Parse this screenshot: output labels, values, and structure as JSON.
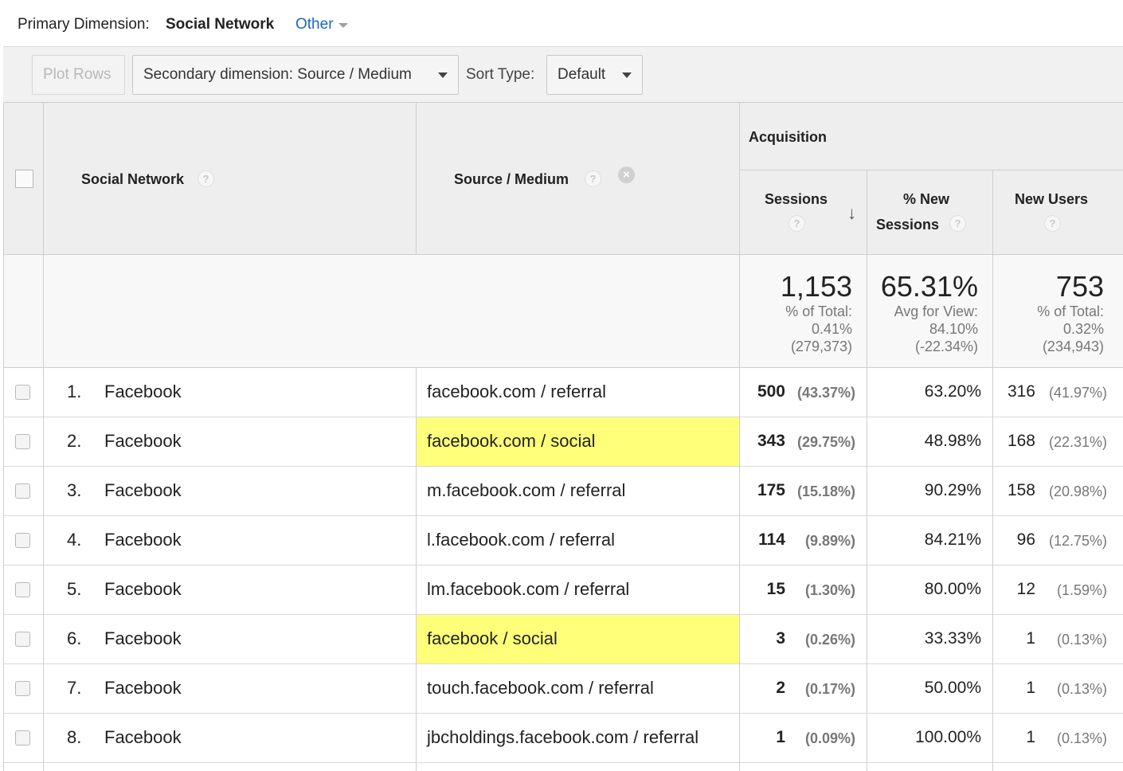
{
  "dimension_bar": {
    "label": "Primary Dimension:",
    "current": "Social Network",
    "other": "Other"
  },
  "toolbar": {
    "plot_rows": "Plot Rows",
    "secondary_dimension": "Secondary dimension: Source / Medium",
    "sort_type_label": "Sort Type:",
    "sort_type_value": "Default"
  },
  "table": {
    "headers": {
      "social_network": "Social Network",
      "source_medium": "Source / Medium",
      "group": "Acquisition",
      "sessions": "Sessions",
      "pct_new_line1": "% New",
      "pct_new_line2": "Sessions",
      "new_users": "New Users",
      "help": "?",
      "remove": "×",
      "sort_arrow": "↓"
    },
    "totals": {
      "sessions": {
        "value": "1,153",
        "l1": "% of Total:",
        "l2": "0.41%",
        "l3": "(279,373)"
      },
      "pct_new": {
        "value": "65.31%",
        "l1": "Avg for View:",
        "l2": "84.10%",
        "l3": "(-22.34%)"
      },
      "new_users": {
        "value": "753",
        "l1": "% of Total:",
        "l2": "0.32%",
        "l3": "(234,943)"
      }
    },
    "rows": [
      {
        "idx": "1.",
        "network": "Facebook",
        "source": "facebook.com / referral",
        "highlight": false,
        "sessions": "500",
        "sessions_pct": "(43.37%)",
        "pct_new": "63.20%",
        "new_users": "316",
        "new_users_pct": "(41.97%)"
      },
      {
        "idx": "2.",
        "network": "Facebook",
        "source": "facebook.com / social",
        "highlight": true,
        "sessions": "343",
        "sessions_pct": "(29.75%)",
        "pct_new": "48.98%",
        "new_users": "168",
        "new_users_pct": "(22.31%)"
      },
      {
        "idx": "3.",
        "network": "Facebook",
        "source": "m.facebook.com / referral",
        "highlight": false,
        "sessions": "175",
        "sessions_pct": "(15.18%)",
        "pct_new": "90.29%",
        "new_users": "158",
        "new_users_pct": "(20.98%)"
      },
      {
        "idx": "4.",
        "network": "Facebook",
        "source": "l.facebook.com / referral",
        "highlight": false,
        "sessions": "114",
        "sessions_pct": "(9.89%)",
        "pct_new": "84.21%",
        "new_users": "96",
        "new_users_pct": "(12.75%)"
      },
      {
        "idx": "5.",
        "network": "Facebook",
        "source": "lm.facebook.com / referral",
        "highlight": false,
        "sessions": "15",
        "sessions_pct": "(1.30%)",
        "pct_new": "80.00%",
        "new_users": "12",
        "new_users_pct": "(1.59%)"
      },
      {
        "idx": "6.",
        "network": "Facebook",
        "source": "facebook / social",
        "highlight": true,
        "sessions": "3",
        "sessions_pct": "(0.26%)",
        "pct_new": "33.33%",
        "new_users": "1",
        "new_users_pct": "(0.13%)"
      },
      {
        "idx": "7.",
        "network": "Facebook",
        "source": "touch.facebook.com / referral",
        "highlight": false,
        "sessions": "2",
        "sessions_pct": "(0.17%)",
        "pct_new": "50.00%",
        "new_users": "1",
        "new_users_pct": "(0.13%)"
      },
      {
        "idx": "8.",
        "network": "Facebook",
        "source": "jbcholdings.facebook.com / referral",
        "highlight": false,
        "sessions": "1",
        "sessions_pct": "(0.09%)",
        "pct_new": "100.00%",
        "new_users": "1",
        "new_users_pct": "(0.13%)"
      }
    ]
  },
  "colors": {
    "highlight": "#ffff7a",
    "link": "#1a66c7",
    "header_bg": "#eeeeee"
  }
}
